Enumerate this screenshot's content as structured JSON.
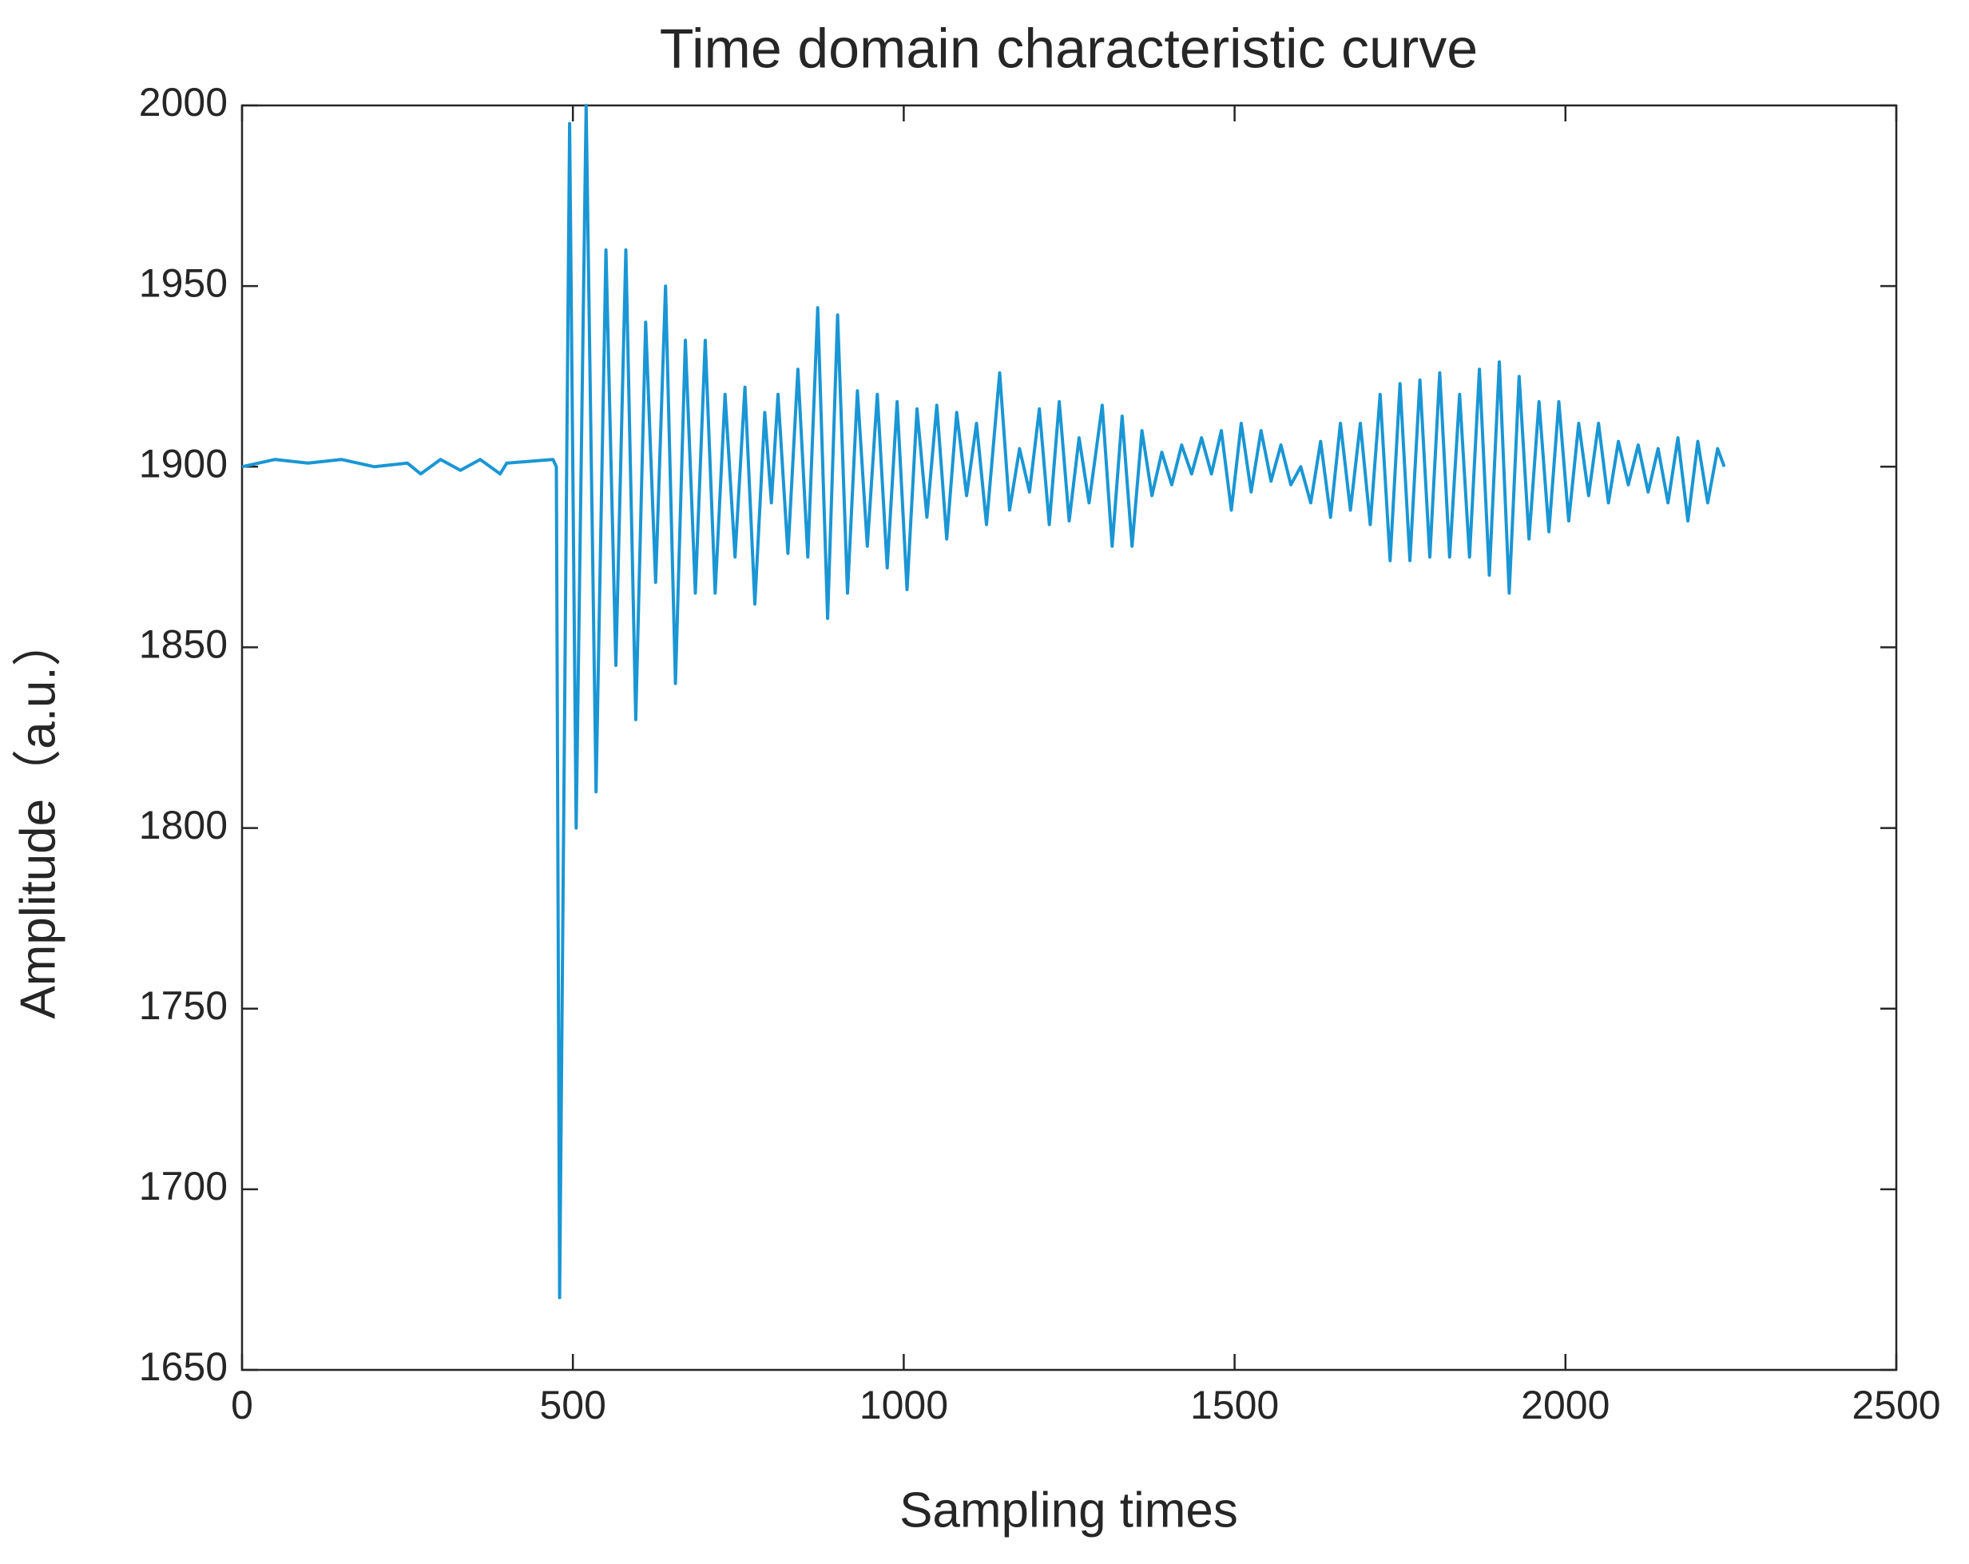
{
  "chart_data": {
    "type": "line",
    "title": "Time domain characteristic curve",
    "xlabel": "Sampling times",
    "ylabel": "Amplitude（a.u.）",
    "xlim": [
      0,
      2500
    ],
    "ylim": [
      1650,
      2000
    ],
    "xticks": [
      0,
      500,
      1000,
      1500,
      2000,
      2500
    ],
    "yticks": [
      1650,
      1700,
      1750,
      1800,
      1850,
      1900,
      1950,
      2000
    ],
    "grid": false,
    "series": [
      {
        "color": "#1a96d4",
        "x": [
          0,
          50,
          100,
          150,
          200,
          250,
          270,
          300,
          330,
          360,
          390,
          400,
          470,
          475,
          480,
          495,
          505,
          520,
          535,
          550,
          565,
          580,
          595,
          610,
          625,
          640,
          655,
          670,
          685,
          700,
          715,
          730,
          745,
          760,
          775,
          790,
          800,
          810,
          825,
          840,
          855,
          870,
          885,
          900,
          915,
          930,
          945,
          960,
          975,
          990,
          1005,
          1020,
          1035,
          1050,
          1065,
          1080,
          1095,
          1110,
          1125,
          1145,
          1160,
          1175,
          1190,
          1205,
          1220,
          1235,
          1250,
          1265,
          1280,
          1300,
          1315,
          1330,
          1345,
          1360,
          1375,
          1390,
          1405,
          1420,
          1435,
          1450,
          1465,
          1480,
          1495,
          1510,
          1525,
          1540,
          1555,
          1570,
          1585,
          1600,
          1615,
          1630,
          1645,
          1660,
          1675,
          1690,
          1705,
          1720,
          1735,
          1750,
          1765,
          1780,
          1795,
          1810,
          1825,
          1840,
          1855,
          1870,
          1885,
          1900,
          1915,
          1930,
          1945,
          1960,
          1975,
          1990,
          2005,
          2020,
          2035,
          2050,
          2065,
          2080,
          2095,
          2110,
          2125,
          2140,
          2155,
          2170,
          2185,
          2200,
          2215,
          2230,
          2240
        ],
        "values": [
          1900,
          1902,
          1901,
          1902,
          1900,
          1901,
          1898,
          1902,
          1899,
          1902,
          1898,
          1901,
          1902,
          1900,
          1670,
          1995,
          1800,
          2000,
          1810,
          1960,
          1845,
          1960,
          1830,
          1940,
          1868,
          1950,
          1840,
          1935,
          1865,
          1935,
          1865,
          1920,
          1875,
          1922,
          1862,
          1915,
          1890,
          1920,
          1876,
          1927,
          1875,
          1944,
          1858,
          1942,
          1865,
          1921,
          1878,
          1920,
          1872,
          1918,
          1866,
          1916,
          1886,
          1917,
          1880,
          1915,
          1892,
          1912,
          1884,
          1926,
          1888,
          1905,
          1893,
          1916,
          1884,
          1918,
          1885,
          1908,
          1890,
          1917,
          1878,
          1914,
          1878,
          1910,
          1892,
          1904,
          1895,
          1906,
          1898,
          1908,
          1898,
          1910,
          1888,
          1912,
          1893,
          1910,
          1896,
          1906,
          1895,
          1900,
          1890,
          1907,
          1886,
          1912,
          1888,
          1912,
          1884,
          1920,
          1874,
          1923,
          1874,
          1924,
          1875,
          1926,
          1875,
          1920,
          1875,
          1927,
          1870,
          1929,
          1865,
          1925,
          1880,
          1918,
          1882,
          1918,
          1885,
          1912,
          1892,
          1912,
          1890,
          1907,
          1895,
          1906,
          1893,
          1905,
          1890,
          1908,
          1885,
          1907,
          1890,
          1905,
          1900
        ]
      }
    ]
  }
}
